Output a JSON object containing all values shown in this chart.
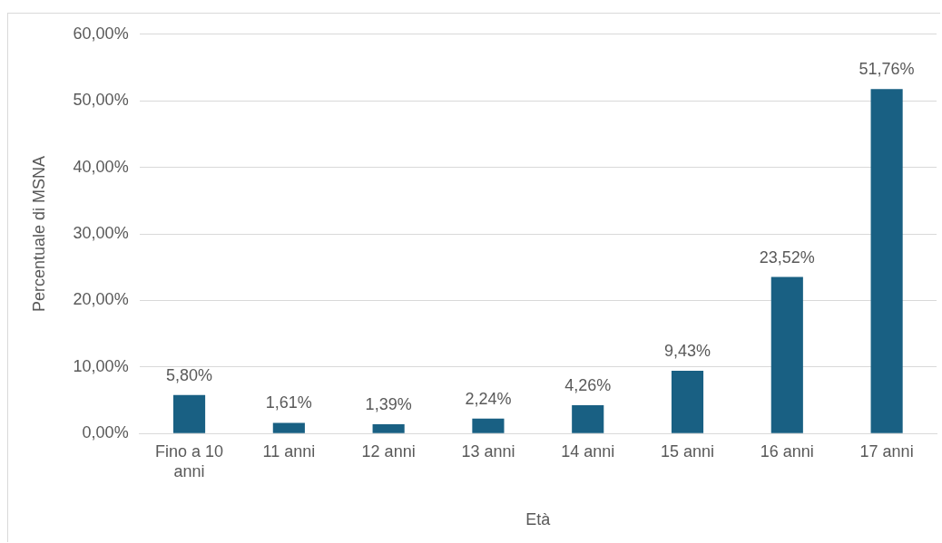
{
  "chart_data": {
    "type": "bar",
    "xlabel": "Età",
    "ylabel": "Percentuale di MSNA",
    "categories": [
      "Fino a 10 anni",
      "11 anni",
      "12 anni",
      "13 anni",
      "14 anni",
      "15 anni",
      "16 anni",
      "17 anni"
    ],
    "values": [
      5.8,
      1.61,
      1.39,
      2.24,
      4.26,
      9.43,
      23.52,
      51.76
    ],
    "value_labels": [
      "5,80%",
      "1,61%",
      "1,39%",
      "2,24%",
      "4,26%",
      "9,43%",
      "23,52%",
      "51,76%"
    ],
    "color": "#196083",
    "ylim": [
      0,
      60
    ],
    "yticks": [
      {
        "value": 0,
        "label": "0,00%"
      },
      {
        "value": 10,
        "label": "10,00%"
      },
      {
        "value": 20,
        "label": "20,00%"
      },
      {
        "value": 30,
        "label": "30,00%"
      },
      {
        "value": 40,
        "label": "40,00%"
      },
      {
        "value": 50,
        "label": "50,00%"
      },
      {
        "value": 60,
        "label": "60,00%"
      }
    ],
    "grid": "y",
    "legend": false
  }
}
